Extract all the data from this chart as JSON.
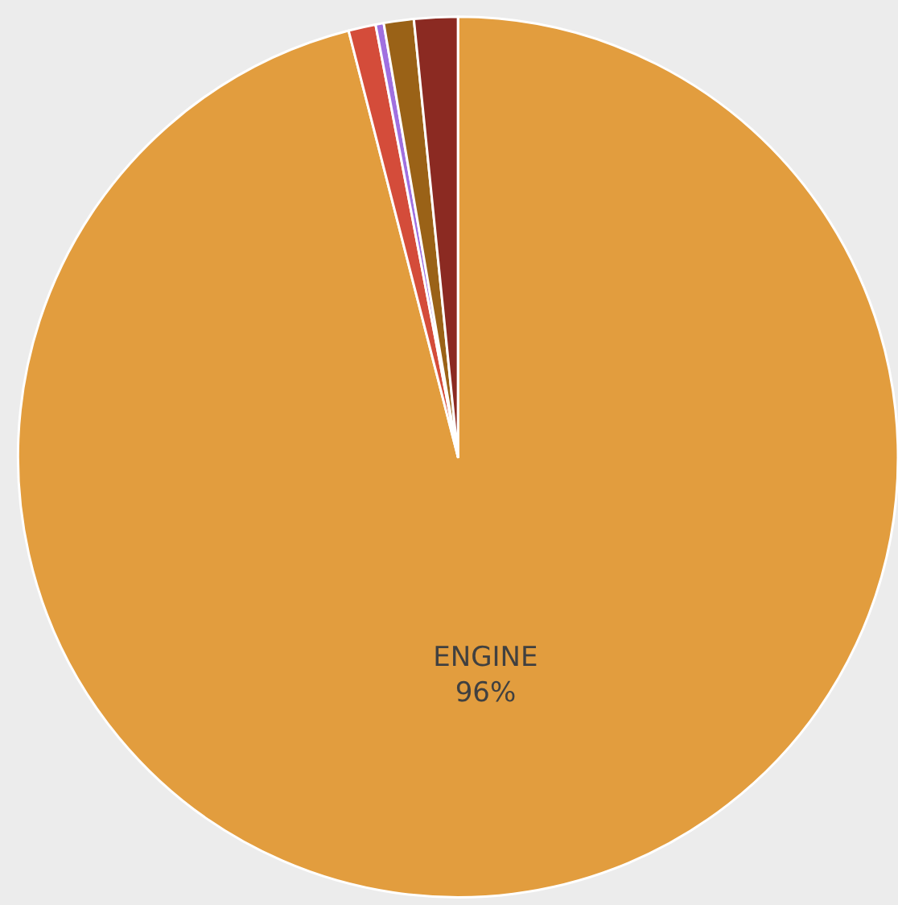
{
  "chart_data": {
    "type": "pie",
    "categories": [
      "ENGINE",
      null,
      null,
      null,
      null
    ],
    "values": [
      96,
      1.0,
      0.3,
      1.1,
      1.6
    ],
    "colors": [
      "#e29d3e",
      "#d44c3a",
      "#a070e0",
      "#9a6217",
      "#8b2a22"
    ],
    "value_labels": [
      "96%",
      null,
      null,
      null,
      null
    ],
    "legend": false
  }
}
